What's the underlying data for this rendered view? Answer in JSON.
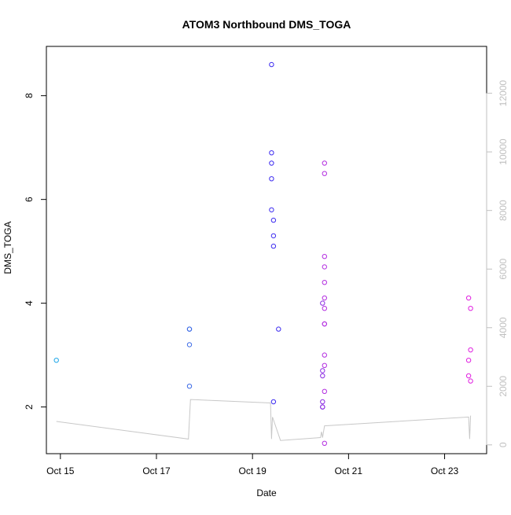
{
  "chart_data": {
    "type": "scatter",
    "title": "ATOM3 Northbound DMS_TOGA",
    "xlabel": "Date",
    "ylabel": "DMS_TOGA",
    "x_ticks": [
      "Oct 15",
      "Oct 17",
      "Oct 19",
      "Oct 21",
      "Oct 23"
    ],
    "xlim": [
      "Oct 14 17:00",
      "Oct 23 21:00"
    ],
    "ylim": [
      1.1,
      8.95
    ],
    "y_ticks": [
      2,
      4,
      6,
      8
    ],
    "y2_ticks": [
      0,
      2000,
      4000,
      6000,
      8000,
      10000,
      12000
    ],
    "y2lim": [
      -300,
      13600
    ],
    "grid": false,
    "series": [
      {
        "points": [
          {
            "x": "Oct 14 22:00",
            "y": 2.9,
            "color": "#1ea6e8"
          },
          {
            "x": "Oct 17 16:30",
            "y": 3.5,
            "color": "#3b6ae6"
          },
          {
            "x": "Oct 17 16:30",
            "y": 3.5,
            "color": "#3b6ae6"
          },
          {
            "x": "Oct 17 16:30",
            "y": 3.2,
            "color": "#3b6ae6"
          },
          {
            "x": "Oct 17 16:30",
            "y": 2.4,
            "color": "#3b6ae6"
          },
          {
            "x": "Oct 19 09:30",
            "y": 8.6,
            "color": "#3c2bf0"
          },
          {
            "x": "Oct 19 09:30",
            "y": 6.9,
            "color": "#3c2bf0"
          },
          {
            "x": "Oct 19 09:30",
            "y": 6.7,
            "color": "#3c2bf0"
          },
          {
            "x": "Oct 19 09:30",
            "y": 6.4,
            "color": "#3c2bf0"
          },
          {
            "x": "Oct 19 09:30",
            "y": 5.8,
            "color": "#3c2bf0"
          },
          {
            "x": "Oct 19 10:30",
            "y": 5.6,
            "color": "#3c2bf0"
          },
          {
            "x": "Oct 19 10:30",
            "y": 5.3,
            "color": "#3c2bf0"
          },
          {
            "x": "Oct 19 10:30",
            "y": 5.1,
            "color": "#3c2bf0"
          },
          {
            "x": "Oct 19 13:00",
            "y": 3.5,
            "color": "#3c2bf0"
          },
          {
            "x": "Oct 19 10:30",
            "y": 2.1,
            "color": "#3c2bf0"
          },
          {
            "x": "Oct 20 11:00",
            "y": 4.0,
            "color": "#8a2be2"
          },
          {
            "x": "Oct 20 11:00",
            "y": 2.7,
            "color": "#8a2be2"
          },
          {
            "x": "Oct 20 11:00",
            "y": 2.6,
            "color": "#8a2be2"
          },
          {
            "x": "Oct 20 11:00",
            "y": 2.1,
            "color": "#8a2be2"
          },
          {
            "x": "Oct 20 11:00",
            "y": 2.0,
            "color": "#8a2be2"
          },
          {
            "x": "Oct 20 11:00",
            "y": 2.0,
            "color": "#8a2be2"
          },
          {
            "x": "Oct 20 12:00",
            "y": 6.7,
            "color": "#b32de0"
          },
          {
            "x": "Oct 20 12:00",
            "y": 6.5,
            "color": "#b32de0"
          },
          {
            "x": "Oct 20 12:00",
            "y": 4.9,
            "color": "#b32de0"
          },
          {
            "x": "Oct 20 12:00",
            "y": 4.7,
            "color": "#b32de0"
          },
          {
            "x": "Oct 20 12:00",
            "y": 4.4,
            "color": "#b32de0"
          },
          {
            "x": "Oct 20 12:00",
            "y": 4.1,
            "color": "#b32de0"
          },
          {
            "x": "Oct 20 12:00",
            "y": 3.9,
            "color": "#b32de0"
          },
          {
            "x": "Oct 20 12:00",
            "y": 3.6,
            "color": "#b32de0"
          },
          {
            "x": "Oct 20 12:00",
            "y": 3.6,
            "color": "#b32de0"
          },
          {
            "x": "Oct 20 12:00",
            "y": 3.0,
            "color": "#b32de0"
          },
          {
            "x": "Oct 20 12:00",
            "y": 2.8,
            "color": "#b32de0"
          },
          {
            "x": "Oct 20 12:00",
            "y": 2.3,
            "color": "#b32de0"
          },
          {
            "x": "Oct 20 12:00",
            "y": 1.3,
            "color": "#b32de0"
          },
          {
            "x": "Oct 23 12:00",
            "y": 4.1,
            "color": "#e020e0"
          },
          {
            "x": "Oct 23 13:00",
            "y": 3.9,
            "color": "#e020e0"
          },
          {
            "x": "Oct 23 13:00",
            "y": 3.1,
            "color": "#e020e0"
          },
          {
            "x": "Oct 23 12:00",
            "y": 2.9,
            "color": "#e020e0"
          },
          {
            "x": "Oct 23 12:00",
            "y": 2.6,
            "color": "#e020e0"
          },
          {
            "x": "Oct 23 13:00",
            "y": 2.5,
            "color": "#e020e0"
          }
        ]
      },
      {
        "axis": "right",
        "type": "line",
        "color": "#c8c8c8",
        "points": [
          {
            "x": "Oct 14 22:00",
            "y": 800
          },
          {
            "x": "Oct 17 16:00",
            "y": 200
          },
          {
            "x": "Oct 17 17:00",
            "y": 1550
          },
          {
            "x": "Oct 19 09:00",
            "y": 1430
          },
          {
            "x": "Oct 19 09:30",
            "y": 200
          },
          {
            "x": "Oct 19 10:00",
            "y": 950
          },
          {
            "x": "Oct 19 14:00",
            "y": 150
          },
          {
            "x": "Oct 20 10:00",
            "y": 250
          },
          {
            "x": "Oct 20 10:30",
            "y": 450
          },
          {
            "x": "Oct 20 11:00",
            "y": 250
          },
          {
            "x": "Oct 20 12:00",
            "y": 650
          },
          {
            "x": "Oct 23 12:00",
            "y": 950
          },
          {
            "x": "Oct 23 12:30",
            "y": 200
          },
          {
            "x": "Oct 23 13:00",
            "y": 1000
          }
        ]
      }
    ]
  }
}
